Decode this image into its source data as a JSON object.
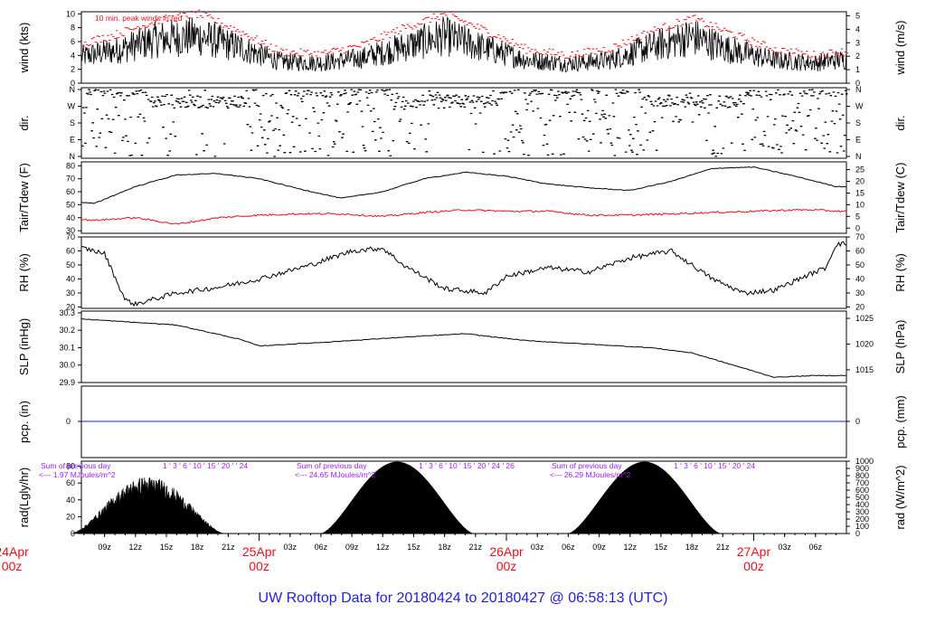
{
  "title": "UW Rooftop Data for 20180424  to  20180427 @ 06:58:13  (UTC)",
  "colors": {
    "title": "#1f1fd6",
    "red": "#e8101a",
    "purple": "#a020f0",
    "blue": "#1f1fd6",
    "black": "#000000"
  },
  "x_axis": {
    "tick_labels": [
      "09z",
      "12z",
      "15z",
      "18z",
      "21z",
      "03z",
      "06z",
      "09z",
      "12z",
      "15z",
      "18z",
      "21z",
      "03z",
      "06z",
      "09z",
      "12z",
      "15z",
      "18z",
      "21z",
      "03z",
      "06z"
    ],
    "day_labels": [
      {
        "date": "24Apr",
        "time": "00z"
      },
      {
        "date": "25Apr",
        "time": "00z"
      },
      {
        "date": "26Apr",
        "time": "00z"
      },
      {
        "date": "27Apr",
        "time": "00z"
      }
    ]
  },
  "chart_data": [
    {
      "type": "line",
      "panel": "wind",
      "ylabel": "wind (kts)",
      "ylabel_right": "wind (m/s)",
      "yticks": [
        0,
        2,
        4,
        6,
        8,
        10
      ],
      "yticks_right": [
        0,
        1,
        2,
        3,
        4,
        5
      ],
      "ylim": [
        0,
        10.3
      ],
      "annotation": "10 min. peak winds in red",
      "x_hours": [
        0,
        6,
        10,
        14,
        18,
        22,
        26,
        30,
        34,
        38,
        42,
        46,
        50,
        54,
        58,
        62,
        66,
        70,
        74,
        78,
        80
      ],
      "series": [
        {
          "values": [
            3.0,
            3.5,
            4.5,
            6.0,
            6.5,
            5.0,
            3.0,
            2.8,
            3.5,
            5.0,
            6.5,
            4.8,
            3.2,
            2.7,
            3.2,
            5.0,
            6.4,
            4.5,
            3.2,
            2.8,
            3.2
          ]
        },
        {
          "values": [
            4.5,
            5.5,
            7.0,
            9.0,
            10.0,
            7.5,
            4.5,
            4.2,
            5.5,
            8.0,
            10.0,
            7.5,
            4.8,
            4.0,
            5.0,
            7.5,
            9.3,
            7.0,
            4.8,
            4.0,
            4.5
          ]
        }
      ]
    },
    {
      "type": "scatter",
      "panel": "dir",
      "ylabel": "dir.",
      "ylabel_right": "dir.",
      "yticks": [
        "N",
        "E",
        "S",
        "W",
        "N"
      ]
    },
    {
      "type": "line",
      "panel": "temp",
      "ylabel": "Tair/Tdew (F)",
      "ylabel_right": "Tair/Tdew (C)",
      "yticks": [
        30,
        40,
        50,
        60,
        70,
        80
      ],
      "yticks_right": [
        0,
        5,
        10,
        15,
        20,
        25
      ],
      "ylim": [
        28,
        83
      ],
      "x_hours": [
        0,
        4,
        8,
        12,
        16,
        20,
        24,
        28,
        32,
        36,
        40,
        44,
        48,
        52,
        56,
        60,
        64,
        68,
        72,
        76,
        78,
        80
      ],
      "series": [
        {
          "values": [
            56,
            53,
            51,
            64,
            73,
            74,
            70,
            62,
            55,
            60,
            70,
            75,
            72,
            66,
            63,
            61,
            68,
            78,
            79,
            72,
            68,
            64
          ]
        },
        {
          "values": [
            40,
            40,
            38,
            40,
            35,
            40,
            42,
            43,
            43,
            41,
            44,
            46,
            45,
            45,
            42,
            42,
            43,
            44,
            45,
            46,
            46,
            45
          ]
        }
      ]
    },
    {
      "type": "line",
      "panel": "rh",
      "ylabel": "RH (%)",
      "ylabel_right": "RH (%)",
      "yticks": [
        20,
        30,
        40,
        50,
        60,
        70
      ],
      "ylim": [
        19,
        70
      ],
      "x_hours": [
        0,
        3,
        7,
        9,
        11,
        12,
        16,
        20,
        24,
        29,
        33,
        36,
        38,
        42,
        46,
        48,
        52,
        56,
        60,
        64,
        68,
        71,
        74,
        77,
        79,
        80
      ],
      "series": [
        {
          "values": [
            50,
            56,
            62,
            58,
            25,
            22,
            30,
            34,
            40,
            50,
            60,
            62,
            50,
            33,
            30,
            42,
            48,
            45,
            55,
            60,
            40,
            30,
            32,
            42,
            48,
            65
          ]
        }
      ]
    },
    {
      "type": "line",
      "panel": "slp",
      "ylabel": "SLP (inHg)",
      "ylabel_right": "SLP (hPa)",
      "yticks": [
        29.9,
        30.0,
        30.1,
        30.2,
        30.3
      ],
      "yticks_right": [
        1015,
        1020,
        1025
      ],
      "ylim": [
        29.9,
        30.31
      ],
      "x_hours": [
        0,
        8,
        16,
        22,
        24,
        30,
        38,
        44,
        50,
        56,
        62,
        66,
        70,
        74,
        78,
        80
      ],
      "series": [
        {
          "values": [
            30.29,
            30.26,
            30.23,
            30.15,
            30.11,
            30.13,
            30.16,
            30.18,
            30.14,
            30.12,
            30.1,
            30.07,
            30.0,
            29.93,
            29.94,
            29.94
          ]
        }
      ]
    },
    {
      "type": "line",
      "panel": "pcp",
      "ylabel": "pcp. (in)",
      "ylabel_right": "pcp. (mm)",
      "yticks": [
        0
      ],
      "yticks_right": [
        0
      ],
      "series": [
        {
          "values": [
            0,
            0
          ]
        }
      ]
    },
    {
      "type": "area",
      "panel": "rad",
      "ylabel": "rad(Lgly/hr)",
      "ylabel_right": "rad (W/m^2)",
      "yticks": [
        0,
        20,
        40,
        60,
        80
      ],
      "yticks_right": [
        0,
        100,
        200,
        300,
        400,
        500,
        600,
        700,
        800,
        900,
        1000
      ],
      "ylim": [
        0,
        86
      ],
      "days": [
        {
          "start_h": 5.8,
          "end_h": 20.6,
          "peak": 65
        },
        {
          "start_h": 30.0,
          "end_h": 44.8,
          "peak": 85
        },
        {
          "start_h": 54.0,
          "end_h": 68.8,
          "peak": 85
        }
      ],
      "daily_notes": [
        {
          "line1": "Sum of previous day",
          "line2": "<--- 1.97 MJoules/m^2",
          "hours": "1  ' 3  ' 6  ' 10  ' 15  ' 20  '  '  24"
        },
        {
          "line1": "Sum of previous day",
          "line2": "<--- 24.65 MJoules/m^2",
          "hours": "1  ' 3  ' 6  ' 10  ' 15  ' 20  ' 24  '  26"
        },
        {
          "line1": "Sum of previous day",
          "line2": "<--- 26.29 MJoules/m^2",
          "hours": "1  ' 3  ' 6  ' 10  ' 15  ' 20  '  24"
        }
      ]
    }
  ]
}
